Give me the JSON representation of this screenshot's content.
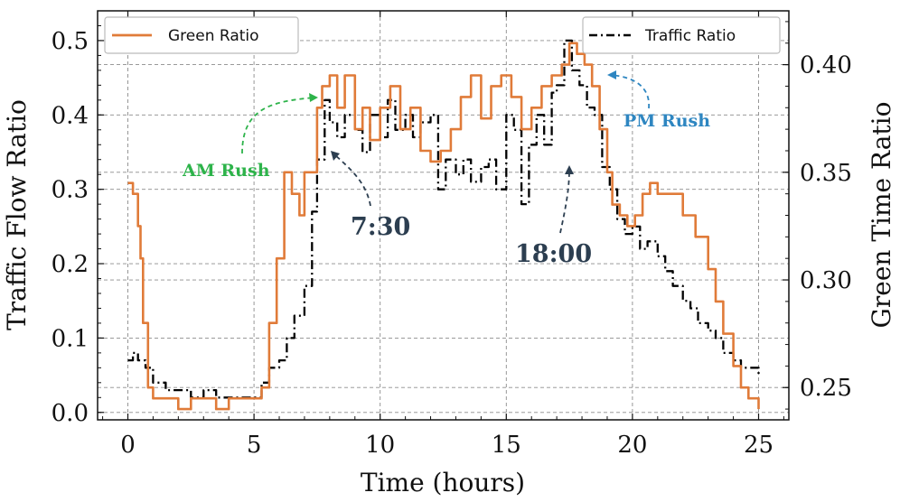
{
  "chart_data": {
    "type": "line",
    "xlabel": "Time (hours)",
    "ylabel_left": "Traffic Flow Ratio",
    "ylabel_right": "Green Time Ratio",
    "xlim": [
      -1.2,
      26.2
    ],
    "ylim_left": [
      -0.01,
      0.54
    ],
    "ylim_right": [
      0.235,
      0.425
    ],
    "xticks": [
      0,
      5,
      10,
      15,
      20,
      25
    ],
    "yticks_left": [
      0.0,
      0.1,
      0.2,
      0.3,
      0.4,
      0.5
    ],
    "yticks_right": [
      0.25,
      0.3,
      0.35,
      0.4
    ],
    "grid": true,
    "series": [
      {
        "name": "Traffic Ratio",
        "axis": "left",
        "style": "dashdot",
        "color": "#000000",
        "x": [
          0,
          0.2,
          0.4,
          0.7,
          1.0,
          1.5,
          2.0,
          2.5,
          3.0,
          3.5,
          4.0,
          4.5,
          5.0,
          5.3,
          5.6,
          6.0,
          6.3,
          6.6,
          7.0,
          7.3,
          7.5,
          7.8,
          8.0,
          8.3,
          8.6,
          9.0,
          9.3,
          9.6,
          10.0,
          10.3,
          10.6,
          11.0,
          11.3,
          11.6,
          12.0,
          12.3,
          12.6,
          13.0,
          13.3,
          13.6,
          14.0,
          14.3,
          14.6,
          15.0,
          15.3,
          15.6,
          15.9,
          16.2,
          16.5,
          16.8,
          17.0,
          17.3,
          17.6,
          17.9,
          18.2,
          18.5,
          18.8,
          19.1,
          19.4,
          19.7,
          20.0,
          20.3,
          20.6,
          21.0,
          21.3,
          21.6,
          22.0,
          22.3,
          22.6,
          23.0,
          23.3,
          23.6,
          24.0,
          24.3,
          24.6,
          25.0
        ],
        "y": [
          0.07,
          0.08,
          0.07,
          0.06,
          0.04,
          0.03,
          0.03,
          0.02,
          0.03,
          0.02,
          0.02,
          0.02,
          0.02,
          0.04,
          0.06,
          0.07,
          0.1,
          0.13,
          0.17,
          0.27,
          0.34,
          0.42,
          0.39,
          0.37,
          0.4,
          0.38,
          0.35,
          0.4,
          0.37,
          0.42,
          0.38,
          0.4,
          0.37,
          0.39,
          0.4,
          0.3,
          0.34,
          0.32,
          0.34,
          0.31,
          0.33,
          0.34,
          0.3,
          0.4,
          0.38,
          0.28,
          0.36,
          0.4,
          0.36,
          0.43,
          0.44,
          0.5,
          0.46,
          0.44,
          0.41,
          0.4,
          0.33,
          0.3,
          0.26,
          0.24,
          0.25,
          0.22,
          0.23,
          0.21,
          0.19,
          0.17,
          0.15,
          0.14,
          0.12,
          0.11,
          0.1,
          0.08,
          0.07,
          0.06,
          0.06,
          0.05
        ]
      },
      {
        "name": "Green Ratio",
        "axis": "right",
        "style": "solid",
        "color": "#e07b39",
        "x": [
          0,
          0.2,
          0.4,
          0.5,
          0.6,
          0.8,
          1.0,
          1.5,
          2.0,
          2.5,
          3.0,
          3.5,
          4.0,
          4.5,
          5.0,
          5.3,
          5.6,
          5.9,
          6.2,
          6.5,
          6.8,
          7.0,
          7.3,
          7.5,
          7.7,
          8.0,
          8.3,
          8.6,
          9.0,
          9.3,
          9.6,
          10.0,
          10.4,
          10.8,
          11.2,
          11.6,
          12.0,
          12.4,
          12.8,
          13.2,
          13.6,
          14.0,
          14.4,
          14.8,
          15.2,
          15.6,
          16.0,
          16.4,
          16.8,
          17.2,
          17.5,
          17.8,
          18.1,
          18.4,
          18.7,
          19.0,
          19.2,
          19.5,
          19.8,
          20.1,
          20.4,
          20.7,
          21.0,
          21.5,
          22.0,
          22.5,
          23.0,
          23.3,
          23.6,
          24.0,
          24.3,
          24.6,
          25.0
        ],
        "y": [
          0.345,
          0.34,
          0.325,
          0.31,
          0.28,
          0.25,
          0.245,
          0.245,
          0.24,
          0.245,
          0.245,
          0.24,
          0.245,
          0.245,
          0.245,
          0.25,
          0.28,
          0.31,
          0.35,
          0.34,
          0.33,
          0.35,
          0.35,
          0.38,
          0.39,
          0.395,
          0.38,
          0.395,
          0.37,
          0.38,
          0.365,
          0.38,
          0.39,
          0.37,
          0.38,
          0.36,
          0.355,
          0.36,
          0.37,
          0.385,
          0.395,
          0.375,
          0.39,
          0.395,
          0.385,
          0.37,
          0.38,
          0.39,
          0.395,
          0.4,
          0.41,
          0.405,
          0.4,
          0.39,
          0.37,
          0.35,
          0.335,
          0.33,
          0.325,
          0.33,
          0.34,
          0.345,
          0.34,
          0.34,
          0.33,
          0.32,
          0.305,
          0.29,
          0.275,
          0.26,
          0.25,
          0.245,
          0.24
        ]
      }
    ],
    "legend_left": {
      "label": "Green Ratio",
      "placement": "top-left"
    },
    "legend_right": {
      "label": "Traffic Ratio",
      "placement": "top-right"
    },
    "annotations": [
      {
        "text": "AM Rush",
        "color": "#2db34a",
        "x": 7.7,
        "y": 0.41
      },
      {
        "text": "7:30",
        "color": "#2c3e50",
        "x": 8.0,
        "y": 0.35
      },
      {
        "text": "PM Rush",
        "color": "#2e86c1",
        "x": 18.7,
        "y": 0.395
      },
      {
        "text": "18:00",
        "color": "#2c3e50",
        "x": 17.5,
        "y": 0.33
      }
    ]
  }
}
